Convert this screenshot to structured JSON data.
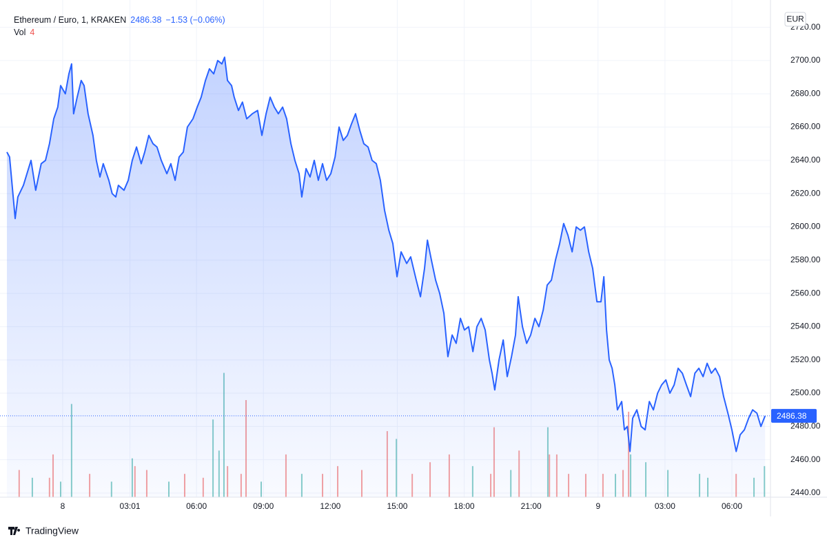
{
  "chart_data": {
    "type": "area",
    "title": "Ethereum / Euro, 1, KRAKEN",
    "change_label": "−1.53 (−0.06%)",
    "currency": "EUR",
    "branding": "TradingView",
    "color": "#2962ff",
    "x": [
      -2.5,
      -2.38,
      -2.13,
      -2.01,
      -1.76,
      -1.42,
      -1.21,
      -0.96,
      -0.77,
      -0.59,
      -0.4,
      -0.22,
      -0.09,
      0.12,
      0.28,
      0.4,
      0.49,
      0.65,
      0.83,
      0.96,
      1.14,
      1.36,
      1.51,
      1.67,
      1.82,
      2.07,
      2.22,
      2.38,
      2.5,
      2.75,
      2.94,
      3.12,
      3.31,
      3.52,
      3.68,
      3.86,
      4.05,
      4.23,
      4.42,
      4.67,
      4.85,
      5.04,
      5.22,
      5.41,
      5.59,
      5.84,
      6.03,
      6.21,
      6.4,
      6.58,
      6.77,
      6.95,
      7.14,
      7.26,
      7.39,
      7.57,
      7.69,
      7.88,
      8.06,
      8.25,
      8.5,
      8.74,
      8.93,
      9.12,
      9.3,
      9.49,
      9.67,
      9.86,
      10.04,
      10.23,
      10.41,
      10.6,
      10.72,
      10.91,
      11.09,
      11.28,
      11.46,
      11.65,
      11.83,
      12.02,
      12.21,
      12.39,
      12.58,
      12.76,
      12.95,
      13.13,
      13.32,
      13.5,
      13.69,
      13.87,
      14.06,
      14.24,
      14.43,
      14.62,
      14.8,
      14.99,
      15.17,
      15.42,
      15.6,
      15.85,
      16.04,
      16.22,
      16.35,
      16.53,
      16.72,
      16.9,
      17.09,
      17.27,
      17.46,
      17.64,
      17.83,
      18.01,
      18.2,
      18.39,
      18.57,
      18.76,
      18.94,
      19.13,
      19.25,
      19.37,
      19.56,
      19.75,
      19.93,
      20.12,
      20.3,
      20.42,
      20.61,
      20.8,
      20.98,
      21.17,
      21.35,
      21.54,
      21.72,
      21.91,
      22.09,
      22.28,
      22.46,
      22.65,
      22.84,
      23.02,
      23.21,
      23.39,
      23.58,
      23.76,
      23.95,
      24.13,
      24.26,
      24.38,
      24.5,
      24.63,
      24.75,
      24.87,
      25.06,
      25.18,
      25.31,
      25.43,
      25.55,
      25.74,
      25.93,
      26.11,
      26.3,
      26.48,
      26.67,
      26.85,
      27.04,
      27.22,
      27.41,
      27.59,
      27.78,
      27.96,
      28.15,
      28.34,
      28.52,
      28.71,
      28.89,
      29.08,
      29.26,
      29.45,
      29.63,
      29.82,
      30.0,
      30.19,
      30.37,
      30.56,
      30.75,
      30.93,
      31.12,
      31.3,
      31.49
    ],
    "values": [
      2645,
      2642,
      2605,
      2618,
      2625,
      2640,
      2622,
      2638,
      2640,
      2650,
      2665,
      2672,
      2685,
      2680,
      2692,
      2698,
      2668,
      2678,
      2688,
      2685,
      2668,
      2655,
      2640,
      2630,
      2638,
      2628,
      2620,
      2618,
      2625,
      2622,
      2628,
      2640,
      2648,
      2638,
      2645,
      2655,
      2650,
      2648,
      2640,
      2632,
      2638,
      2628,
      2642,
      2645,
      2660,
      2665,
      2672,
      2678,
      2688,
      2695,
      2692,
      2700,
      2698,
      2702,
      2688,
      2685,
      2678,
      2670,
      2675,
      2665,
      2668,
      2670,
      2655,
      2668,
      2678,
      2672,
      2668,
      2672,
      2665,
      2650,
      2640,
      2632,
      2618,
      2635,
      2630,
      2640,
      2628,
      2638,
      2628,
      2632,
      2642,
      2660,
      2652,
      2655,
      2662,
      2668,
      2658,
      2650,
      2648,
      2640,
      2638,
      2628,
      2610,
      2598,
      2590,
      2570,
      2585,
      2578,
      2582,
      2568,
      2558,
      2575,
      2592,
      2580,
      2568,
      2560,
      2548,
      2522,
      2535,
      2530,
      2545,
      2538,
      2540,
      2525,
      2540,
      2545,
      2538,
      2520,
      2512,
      2502,
      2520,
      2532,
      2510,
      2522,
      2535,
      2558,
      2540,
      2530,
      2535,
      2545,
      2540,
      2550,
      2565,
      2568,
      2580,
      2590,
      2602,
      2595,
      2585,
      2600,
      2598,
      2600,
      2585,
      2575,
      2555,
      2555,
      2570,
      2538,
      2520,
      2515,
      2505,
      2490,
      2495,
      2478,
      2480,
      2465,
      2485,
      2490,
      2480,
      2478,
      2495,
      2490,
      2500,
      2505,
      2508,
      2500,
      2505,
      2515,
      2512,
      2505,
      2498,
      2512,
      2515,
      2510,
      2518,
      2512,
      2515,
      2510,
      2498,
      2488,
      2478,
      2465,
      2475,
      2478,
      2485,
      2490,
      2488,
      2480,
      2486.38
    ],
    "xlim": [
      -2.5,
      31.73
    ],
    "xticks": [
      {
        "value": 0,
        "label": "8"
      },
      {
        "value": 3.0167,
        "label": "03:01"
      },
      {
        "value": 6,
        "label": "06:00"
      },
      {
        "value": 9,
        "label": "09:00"
      },
      {
        "value": 12,
        "label": "12:00"
      },
      {
        "value": 15,
        "label": "15:00"
      },
      {
        "value": 18,
        "label": "18:00"
      },
      {
        "value": 21,
        "label": "21:00"
      },
      {
        "value": 24,
        "label": "9"
      },
      {
        "value": 27,
        "label": "03:00"
      },
      {
        "value": 30,
        "label": "06:00"
      }
    ],
    "ylim": [
      2437.5,
      2736.4
    ],
    "yticks": [
      {
        "value": 2440,
        "label": "2440.00"
      },
      {
        "value": 2460,
        "label": "2460.00"
      },
      {
        "value": 2480,
        "label": "2480.00"
      },
      {
        "value": 2500,
        "label": "2500.00"
      },
      {
        "value": 2520,
        "label": "2520.00"
      },
      {
        "value": 2540,
        "label": "2540.00"
      },
      {
        "value": 2560,
        "label": "2560.00"
      },
      {
        "value": 2580,
        "label": "2580.00"
      },
      {
        "value": 2600,
        "label": "2600.00"
      },
      {
        "value": 2620,
        "label": "2620.00"
      },
      {
        "value": 2640,
        "label": "2640.00"
      },
      {
        "value": 2660,
        "label": "2660.00"
      },
      {
        "value": 2680,
        "label": "2680.00"
      },
      {
        "value": 2700,
        "label": "2700.00"
      },
      {
        "value": 2720,
        "label": "2720.00"
      }
    ],
    "grid": true,
    "volume": {
      "name": "Vol",
      "ylim": [
        0,
        64
      ],
      "up_color": "#26a69a",
      "down_color": "#ef5350",
      "x": [
        -1.95,
        -1.36,
        -0.59,
        -0.43,
        -0.09,
        0.4,
        1.21,
        2.19,
        3.12,
        3.24,
        3.77,
        4.76,
        5.47,
        6.3,
        6.74,
        7.01,
        7.23,
        7.39,
        8.0,
        8.22,
        8.9,
        10.01,
        10.72,
        11.65,
        12.33,
        13.41,
        14.55,
        14.96,
        15.67,
        16.47,
        17.33,
        18.38,
        19.19,
        19.34,
        20.09,
        20.46,
        21.75,
        21.82,
        22.15,
        22.68,
        23.45,
        24.22,
        24.78,
        25.12,
        25.37,
        25.46,
        26.14,
        27.13,
        28.55,
        28.92,
        30.19,
        30.99,
        31.46
      ],
      "values": [
        3.5,
        2.5,
        2.5,
        5.5,
        2,
        12,
        3,
        2,
        5,
        4,
        3.5,
        2,
        3,
        2.5,
        10,
        6,
        16,
        4,
        3,
        12.5,
        2,
        5.5,
        3,
        3,
        4,
        3.5,
        8.5,
        7.5,
        3,
        4.5,
        5.5,
        4,
        3,
        9,
        3.5,
        6,
        9,
        5.5,
        5.5,
        3,
        3,
        3,
        3,
        3.5,
        11,
        5.5,
        4.5,
        3.5,
        3,
        2.5,
        3,
        2.5,
        4
      ],
      "up": [
        false,
        true,
        false,
        false,
        true,
        true,
        false,
        true,
        true,
        false,
        false,
        true,
        false,
        false,
        true,
        true,
        true,
        false,
        false,
        false,
        true,
        false,
        true,
        false,
        false,
        false,
        false,
        true,
        false,
        false,
        false,
        true,
        false,
        false,
        true,
        false,
        true,
        false,
        false,
        false,
        false,
        false,
        true,
        false,
        false,
        true,
        true,
        true,
        true,
        true,
        false,
        true,
        true
      ]
    }
  }
}
